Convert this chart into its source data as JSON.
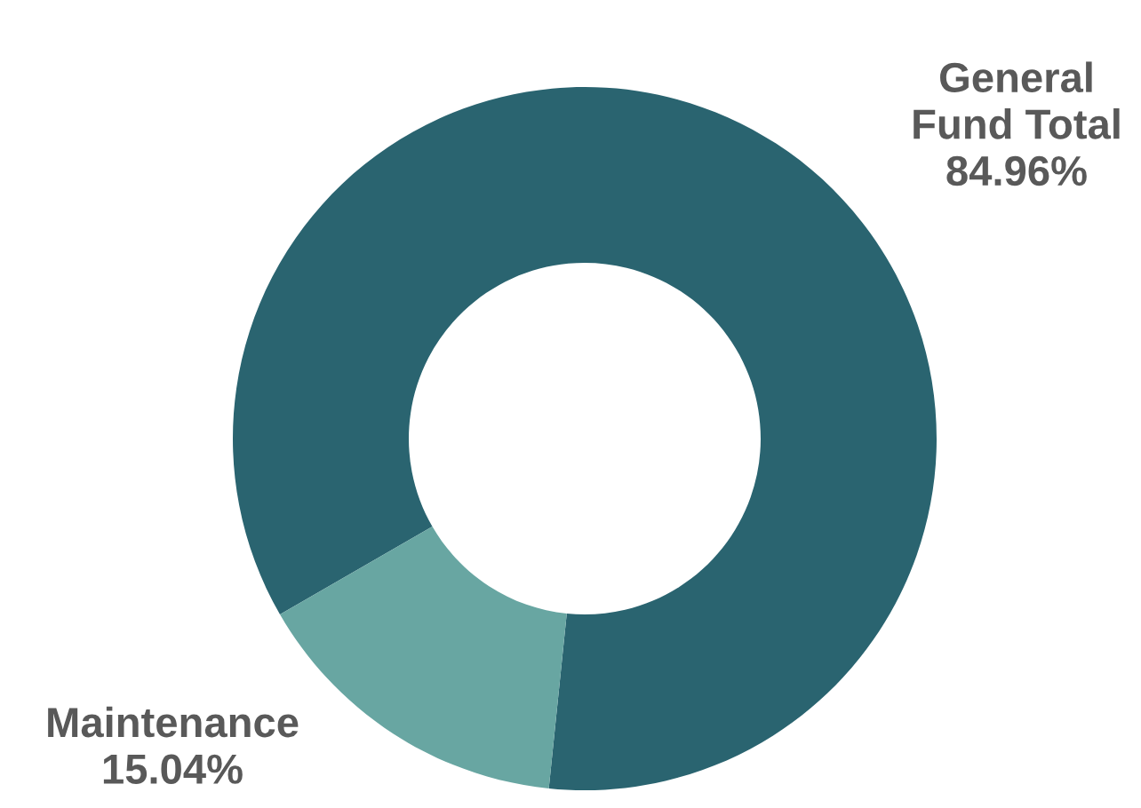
{
  "chart_data": {
    "type": "donut",
    "categories": [
      "General Fund Total",
      "Maintenance"
    ],
    "values": [
      84.96,
      15.04
    ],
    "colors": [
      "#2a6470",
      "#68a6a2"
    ],
    "value_labels": [
      "84.96%",
      "15.04%"
    ],
    "legend": false
  }
}
